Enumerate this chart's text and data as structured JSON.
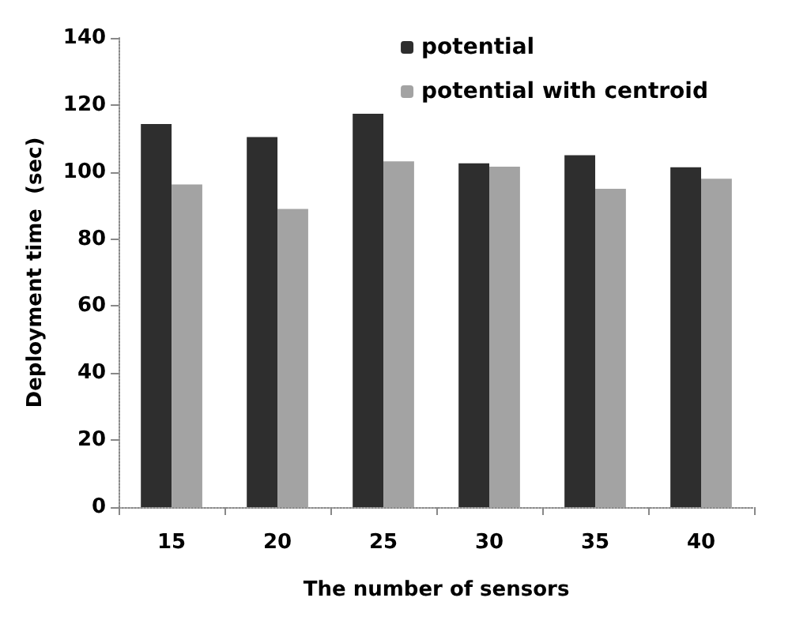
{
  "chart_data": {
    "type": "bar",
    "xlabel": "The number of sensors",
    "ylabel": "Deployment time  (sec)",
    "categories": [
      "15",
      "20",
      "25",
      "30",
      "35",
      "40"
    ],
    "series": [
      {
        "name": "potential",
        "color": "#2e2e2e",
        "values": [
          114.3,
          110.4,
          117.4,
          102.6,
          105,
          101.4
        ]
      },
      {
        "name": "potential with centroid",
        "color": "#a3a3a3",
        "values": [
          96.3,
          89,
          103.2,
          101.6,
          95,
          98
        ]
      }
    ],
    "ylim": [
      0,
      140
    ],
    "yticks": [
      0,
      20,
      40,
      60,
      80,
      100,
      120,
      140
    ],
    "grid": false,
    "legend": "top right"
  }
}
